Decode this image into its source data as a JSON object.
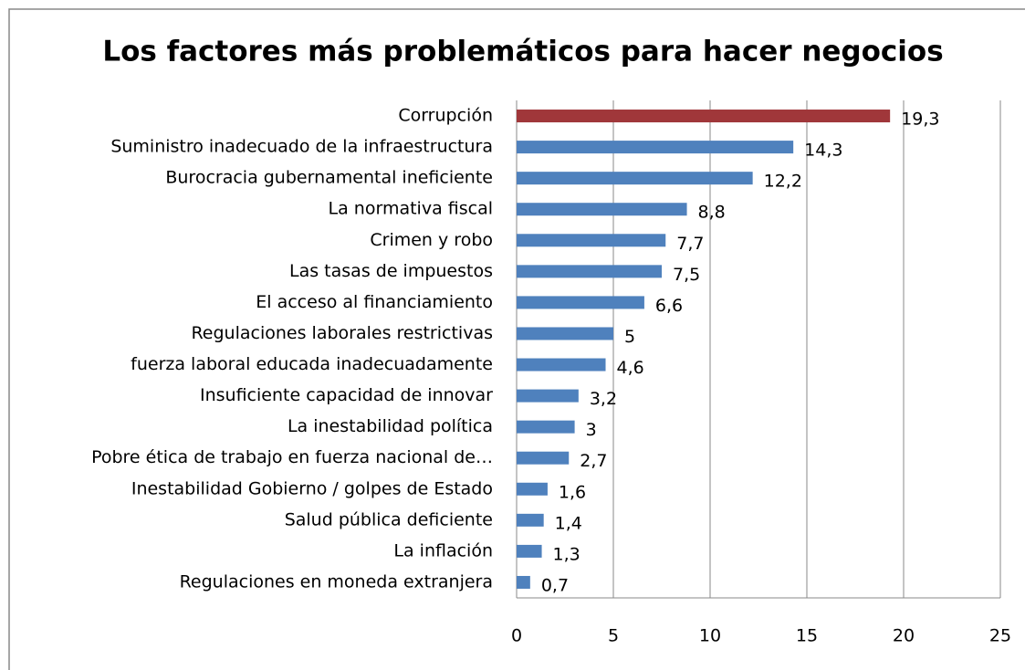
{
  "chart_data": {
    "type": "bar",
    "orientation": "horizontal",
    "title": "Los factores más problemáticos para hacer negocios",
    "categories": [
      "Corrupción",
      "Suministro inadecuado de la infraestructura",
      "Burocracia gubernamental ineficiente",
      "La normativa fiscal",
      "Crimen y robo",
      "Las tasas de impuestos",
      "El acceso al financiamiento",
      "Regulaciones laborales restrictivas",
      "fuerza laboral educada inadecuadamente",
      "Insuficiente capacidad de innovar",
      "La inestabilidad política",
      "Pobre ética de trabajo en fuerza nacional de…",
      "Inestabilidad Gobierno / golpes de Estado",
      "Salud pública deficiente",
      "La inflación",
      "Regulaciones en moneda extranjera"
    ],
    "values": [
      19.3,
      14.3,
      12.2,
      8.8,
      7.7,
      7.5,
      6.6,
      5,
      4.6,
      3.2,
      3,
      2.7,
      1.6,
      1.4,
      1.3,
      0.7
    ],
    "value_labels": [
      "19,3",
      "14,3",
      "12,2",
      "8,8",
      "7,7",
      "7,5",
      "6,6",
      "5",
      "4,6",
      "3,2",
      "3",
      "2,7",
      "1,6",
      "1,4",
      "1,3",
      "0,7"
    ],
    "colors": [
      "#a0373a",
      "#4f81bd",
      "#4f81bd",
      "#4f81bd",
      "#4f81bd",
      "#4f81bd",
      "#4f81bd",
      "#4f81bd",
      "#4f81bd",
      "#4f81bd",
      "#4f81bd",
      "#4f81bd",
      "#4f81bd",
      "#4f81bd",
      "#4f81bd",
      "#4f81bd"
    ],
    "xlim": [
      0,
      25
    ],
    "xticks": [
      0,
      5,
      10,
      15,
      20,
      25
    ],
    "grid": true
  }
}
